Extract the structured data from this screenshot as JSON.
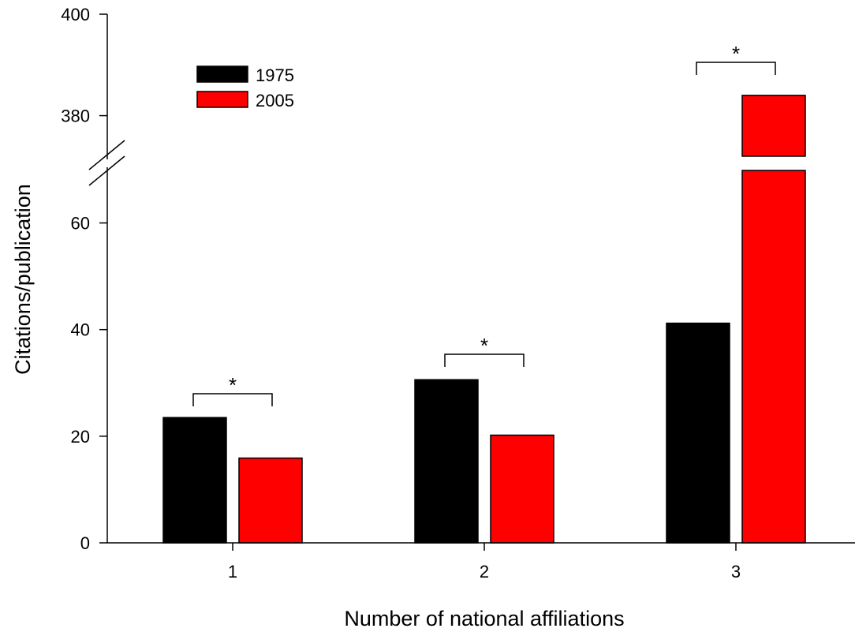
{
  "chart_data": {
    "type": "bar",
    "xlabel": "Number of national affiliations",
    "ylabel": "Citations/publication",
    "categories": [
      "1",
      "2",
      "3"
    ],
    "series": [
      {
        "name": "1975",
        "color": "#000000",
        "values": [
          23.5,
          30.6,
          41.2
        ]
      },
      {
        "name": "2005",
        "color": "#ff0000",
        "values": [
          15.9,
          20.2,
          384
        ]
      }
    ],
    "y_axis": {
      "broken": true,
      "lower_segment": {
        "range": [
          0,
          70
        ],
        "ticks": [
          "0",
          "20",
          "40",
          "60"
        ]
      },
      "upper_segment": {
        "range": [
          372,
          400
        ],
        "ticks": [
          "380",
          "400"
        ]
      }
    },
    "significance_markers": [
      {
        "category": "1",
        "label": "*"
      },
      {
        "category": "2",
        "label": "*"
      },
      {
        "category": "3",
        "label": "*"
      }
    ],
    "legend": {
      "position": "top-left"
    },
    "grid": false
  }
}
